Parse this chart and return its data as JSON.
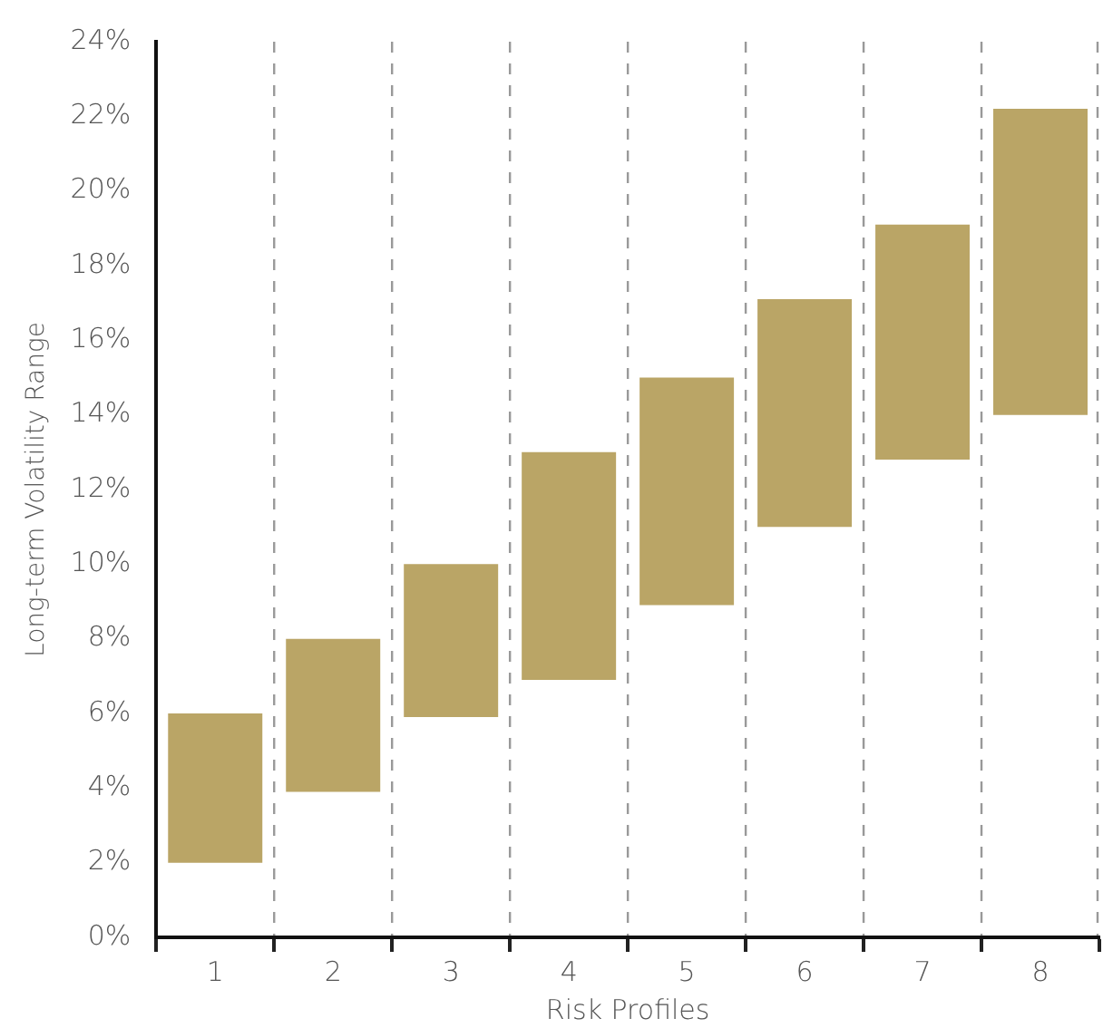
{
  "chart_data": {
    "type": "bar",
    "xlabel": "Risk Profiles",
    "ylabel": "Long-term Volatility Range",
    "categories": [
      "1",
      "2",
      "3",
      "4",
      "5",
      "6",
      "7",
      "8"
    ],
    "base": [
      2,
      3.9,
      5.9,
      6.9,
      8.9,
      11,
      12.8,
      14
    ],
    "values": [
      4,
      4.1,
      4.1,
      6.1,
      6.1,
      6.1,
      6.3,
      8.2
    ],
    "color": "#baa566",
    "ylim": [
      0,
      24
    ],
    "yticks": [
      {
        "value": 0,
        "label": "0%"
      },
      {
        "value": 2,
        "label": "2%"
      },
      {
        "value": 4,
        "label": "4%"
      },
      {
        "value": 6,
        "label": "6%"
      },
      {
        "value": 8,
        "label": "8%"
      },
      {
        "value": 10,
        "label": "10%"
      },
      {
        "value": 12,
        "label": "12%"
      },
      {
        "value": 14,
        "label": "14%"
      },
      {
        "value": 16,
        "label": "16%"
      },
      {
        "value": 18,
        "label": "18%"
      },
      {
        "value": 20,
        "label": "20%"
      },
      {
        "value": 22,
        "label": "22%"
      },
      {
        "value": 24,
        "label": "24%"
      }
    ],
    "grid": "x",
    "legend": false
  }
}
